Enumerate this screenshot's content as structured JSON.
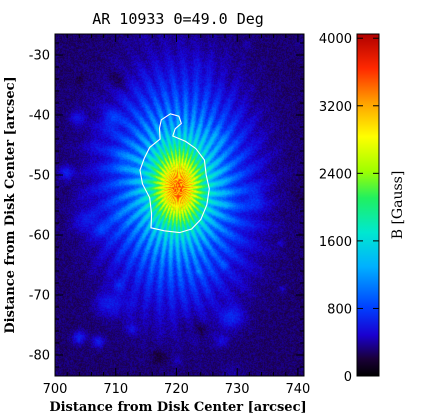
{
  "chart_data": {
    "type": "heatmap",
    "title": "AR 10933 Θ=49.0 Deg",
    "xlabel": "Distance from Disk Center [arcsec]",
    "ylabel": "Distance from Disk Center [arcsec]",
    "xlim": [
      700,
      741
    ],
    "ylim": [
      -83.5,
      -26.5
    ],
    "xticks": [
      700,
      710,
      720,
      730,
      740
    ],
    "yticks": [
      -30,
      -40,
      -50,
      -60,
      -70,
      -80
    ],
    "colorbar": {
      "label": "B [Gauss]",
      "range": [
        0,
        4050
      ],
      "ticks": [
        0,
        800,
        1600,
        2400,
        3200,
        4000
      ],
      "colormap": "rainbow"
    },
    "field": {
      "description_center": [
        720.2,
        -52.0
      ],
      "umbra_peak_gauss": 2900,
      "penumbra_gauss": 1600,
      "background_gauss": 300
    },
    "contour": {
      "color": "#ffffff",
      "points": [
        [
          717.5,
          -40.8
        ],
        [
          719.0,
          -39.8
        ],
        [
          720.4,
          -40.2
        ],
        [
          720.8,
          -41.4
        ],
        [
          719.8,
          -42.3
        ],
        [
          719.4,
          -43.5
        ],
        [
          721.5,
          -44.4
        ],
        [
          723.2,
          -45.6
        ],
        [
          724.6,
          -47.5
        ],
        [
          724.9,
          -50.0
        ],
        [
          725.4,
          -52.3
        ],
        [
          725.0,
          -55.0
        ],
        [
          724.0,
          -57.4
        ],
        [
          722.5,
          -59.0
        ],
        [
          720.5,
          -59.6
        ],
        [
          718.0,
          -59.3
        ],
        [
          715.8,
          -58.8
        ],
        [
          715.9,
          -56.5
        ],
        [
          715.6,
          -53.8
        ],
        [
          714.4,
          -51.5
        ],
        [
          714.0,
          -49.2
        ],
        [
          714.7,
          -47.2
        ],
        [
          715.6,
          -45.4
        ],
        [
          717.3,
          -44.0
        ],
        [
          717.2,
          -42.2
        ]
      ]
    }
  }
}
